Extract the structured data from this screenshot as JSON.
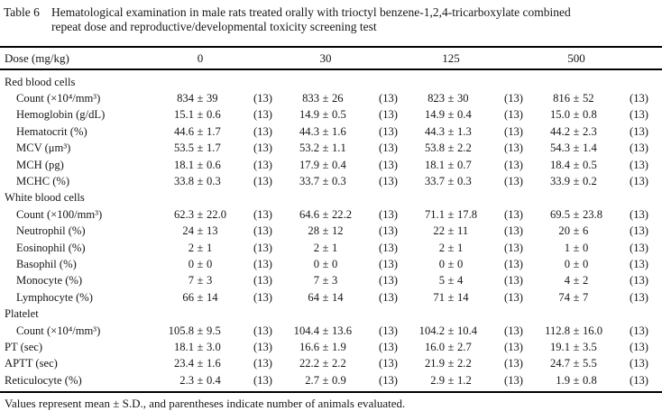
{
  "symbols": {
    "plus_minus": "±"
  },
  "title": {
    "label": "Table 6",
    "lines": [
      "Hematological examination in male rats treated orally with trioctyl benzene-1,2,4-tricarboxylate combined",
      "repeat dose and reproductive/developmental toxicity screening test"
    ]
  },
  "table": {
    "header": {
      "dose_label": "Dose (mg/kg)",
      "doses": [
        "0",
        "30",
        "125",
        "500"
      ]
    },
    "sections": [
      {
        "name": "Red blood cells",
        "rows": [
          {
            "label": "Count (×10⁴/mm³)",
            "indent": 1,
            "values": [
              {
                "mean": "834",
                "sd": "39",
                "n": "(13)"
              },
              {
                "mean": "833",
                "sd": "26",
                "n": "(13)"
              },
              {
                "mean": "823",
                "sd": "30",
                "n": "(13)"
              },
              {
                "mean": "816",
                "sd": "52",
                "n": "(13)"
              }
            ]
          },
          {
            "label": "Hemoglobin (g/dL)",
            "indent": 1,
            "values": [
              {
                "mean": "15.1",
                "sd": "0.6",
                "n": "(13)"
              },
              {
                "mean": "14.9",
                "sd": "0.5",
                "n": "(13)"
              },
              {
                "mean": "14.9",
                "sd": "0.4",
                "n": "(13)"
              },
              {
                "mean": "15.0",
                "sd": "0.8",
                "n": "(13)"
              }
            ]
          },
          {
            "label": "Hematocrit (%)",
            "indent": 1,
            "values": [
              {
                "mean": "44.6",
                "sd": "1.7",
                "n": "(13)"
              },
              {
                "mean": "44.3",
                "sd": "1.6",
                "n": "(13)"
              },
              {
                "mean": "44.3",
                "sd": "1.3",
                "n": "(13)"
              },
              {
                "mean": "44.2",
                "sd": "2.3",
                "n": "(13)"
              }
            ]
          },
          {
            "label": "MCV (μm³)",
            "indent": 1,
            "values": [
              {
                "mean": "53.5",
                "sd": "1.7",
                "n": "(13)"
              },
              {
                "mean": "53.2",
                "sd": "1.1",
                "n": "(13)"
              },
              {
                "mean": "53.8",
                "sd": "2.2",
                "n": "(13)"
              },
              {
                "mean": "54.3",
                "sd": "1.4",
                "n": "(13)"
              }
            ]
          },
          {
            "label": "MCH (pg)",
            "indent": 1,
            "values": [
              {
                "mean": "18.1",
                "sd": "0.6",
                "n": "(13)"
              },
              {
                "mean": "17.9",
                "sd": "0.4",
                "n": "(13)"
              },
              {
                "mean": "18.1",
                "sd": "0.7",
                "n": "(13)"
              },
              {
                "mean": "18.4",
                "sd": "0.5",
                "n": "(13)"
              }
            ]
          },
          {
            "label": "MCHC (%)",
            "indent": 1,
            "values": [
              {
                "mean": "33.8",
                "sd": "0.3",
                "n": "(13)"
              },
              {
                "mean": "33.7",
                "sd": "0.3",
                "n": "(13)"
              },
              {
                "mean": "33.7",
                "sd": "0.3",
                "n": "(13)"
              },
              {
                "mean": "33.9",
                "sd": "0.2",
                "n": "(13)"
              }
            ]
          }
        ]
      },
      {
        "name": "White blood cells",
        "rows": [
          {
            "label": "Count (×100/mm³)",
            "indent": 1,
            "values": [
              {
                "mean": "62.3",
                "sd": "22.0",
                "n": "(13)"
              },
              {
                "mean": "64.6",
                "sd": "22.2",
                "n": "(13)"
              },
              {
                "mean": "71.1",
                "sd": "17.8",
                "n": "(13)"
              },
              {
                "mean": "69.5",
                "sd": "23.8",
                "n": "(13)"
              }
            ]
          },
          {
            "label": "Neutrophil (%)",
            "indent": 1,
            "values": [
              {
                "mean": "24",
                "sd": "13",
                "n": "(13)"
              },
              {
                "mean": "28",
                "sd": "12",
                "n": "(13)"
              },
              {
                "mean": "22",
                "sd": "11",
                "n": "(13)"
              },
              {
                "mean": "20",
                "sd": "6",
                "n": "(13)"
              }
            ]
          },
          {
            "label": "Eosinophil (%)",
            "indent": 1,
            "values": [
              {
                "mean": "2",
                "sd": "1",
                "n": "(13)"
              },
              {
                "mean": "2",
                "sd": "1",
                "n": "(13)"
              },
              {
                "mean": "2",
                "sd": "1",
                "n": "(13)"
              },
              {
                "mean": "1",
                "sd": "0",
                "n": "(13)"
              }
            ]
          },
          {
            "label": "Basophil (%)",
            "indent": 1,
            "values": [
              {
                "mean": "0",
                "sd": "0",
                "n": "(13)"
              },
              {
                "mean": "0",
                "sd": "0",
                "n": "(13)"
              },
              {
                "mean": "0",
                "sd": "0",
                "n": "(13)"
              },
              {
                "mean": "0",
                "sd": "0",
                "n": "(13)"
              }
            ]
          },
          {
            "label": "Monocyte (%)",
            "indent": 1,
            "values": [
              {
                "mean": "7",
                "sd": "3",
                "n": "(13)"
              },
              {
                "mean": "7",
                "sd": "3",
                "n": "(13)"
              },
              {
                "mean": "5",
                "sd": "4",
                "n": "(13)"
              },
              {
                "mean": "4",
                "sd": "2",
                "n": "(13)"
              }
            ]
          },
          {
            "label": "Lymphocyte (%)",
            "indent": 1,
            "values": [
              {
                "mean": "66",
                "sd": "14",
                "n": "(13)"
              },
              {
                "mean": "64",
                "sd": "14",
                "n": "(13)"
              },
              {
                "mean": "71",
                "sd": "14",
                "n": "(13)"
              },
              {
                "mean": "74",
                "sd": "7",
                "n": "(13)"
              }
            ]
          }
        ]
      },
      {
        "name": "Platelet",
        "rows": [
          {
            "label": "Count (×10⁴/mm³)",
            "indent": 1,
            "values": [
              {
                "mean": "105.8",
                "sd": "9.5",
                "n": "(13)"
              },
              {
                "mean": "104.4",
                "sd": "13.6",
                "n": "(13)"
              },
              {
                "mean": "104.2",
                "sd": "10.4",
                "n": "(13)"
              },
              {
                "mean": "112.8",
                "sd": "16.0",
                "n": "(13)"
              }
            ]
          }
        ]
      },
      {
        "name": "",
        "rows": [
          {
            "label": "PT (sec)",
            "indent": 0,
            "values": [
              {
                "mean": "18.1",
                "sd": "3.0",
                "n": "(13)"
              },
              {
                "mean": "16.6",
                "sd": "1.9",
                "n": "(13)"
              },
              {
                "mean": "16.0",
                "sd": "2.7",
                "n": "(13)"
              },
              {
                "mean": "19.1",
                "sd": "3.5",
                "n": "(13)"
              }
            ]
          },
          {
            "label": "APTT (sec)",
            "indent": 0,
            "values": [
              {
                "mean": "23.4",
                "sd": "1.6",
                "n": "(13)"
              },
              {
                "mean": "22.2",
                "sd": "2.2",
                "n": "(13)"
              },
              {
                "mean": "21.9",
                "sd": "2.2",
                "n": "(13)"
              },
              {
                "mean": "24.7",
                "sd": "5.5",
                "n": "(13)"
              }
            ]
          },
          {
            "label": "Reticulocyte (%)",
            "indent": 0,
            "values": [
              {
                "mean": "2.3",
                "sd": "0.4",
                "n": "(13)"
              },
              {
                "mean": "2.7",
                "sd": "0.9",
                "n": "(13)"
              },
              {
                "mean": "2.9",
                "sd": "1.2",
                "n": "(13)"
              },
              {
                "mean": "1.9",
                "sd": "0.8",
                "n": "(13)"
              }
            ]
          }
        ]
      }
    ]
  },
  "footnote": "Values represent mean ± S.D., and parentheses indicate number of animals evaluated."
}
